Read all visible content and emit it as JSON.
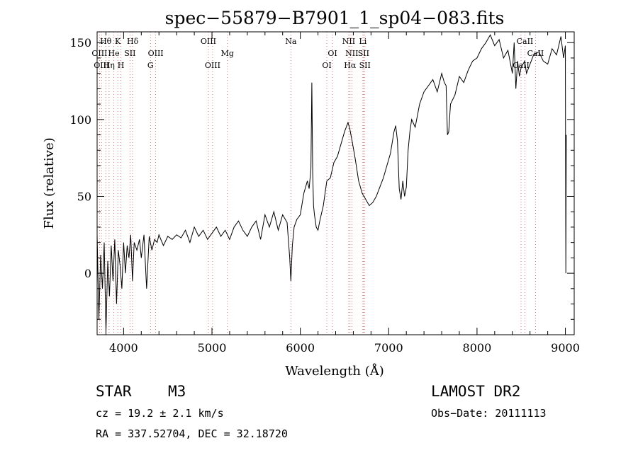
{
  "chart_data": {
    "type": "line",
    "title": "spec−55879−B7901_1_sp04−083.fits",
    "xlabel": "Wavelength (Å)",
    "ylabel": "Flux (relative)",
    "xlim": [
      3700,
      9100
    ],
    "ylim": [
      -40,
      157
    ],
    "x_ticks": [
      4000,
      5000,
      6000,
      7000,
      8000,
      9000
    ],
    "y_ticks": [
      0,
      50,
      100,
      150
    ],
    "series": [
      {
        "x": [
          3700,
          3720,
          3740,
          3760,
          3780,
          3800,
          3820,
          3840,
          3860,
          3880,
          3900,
          3920,
          3940,
          3960,
          3980,
          4000,
          4020,
          4040,
          4060,
          4080,
          4100,
          4120,
          4150,
          4180,
          4200,
          4230,
          4260,
          4290,
          4320,
          4350,
          4380,
          4400,
          4450,
          4500,
          4550,
          4600,
          4650,
          4700,
          4750,
          4800,
          4850,
          4900,
          4950,
          5000,
          5050,
          5100,
          5150,
          5200,
          5250,
          5300,
          5350,
          5400,
          5450,
          5500,
          5550,
          5600,
          5650,
          5700,
          5750,
          5800,
          5850,
          5880,
          5893,
          5910,
          5930,
          5960,
          6000,
          6040,
          6080,
          6100,
          6120,
          6130,
          6140,
          6150,
          6160,
          6180,
          6200,
          6220,
          6260,
          6300,
          6340,
          6380,
          6420,
          6460,
          6500,
          6540,
          6560,
          6580,
          6620,
          6660,
          6700,
          6740,
          6780,
          6820,
          6860,
          6900,
          6940,
          6980,
          7020,
          7060,
          7080,
          7100,
          7120,
          7140,
          7160,
          7180,
          7200,
          7220,
          7240,
          7260,
          7300,
          7350,
          7400,
          7450,
          7500,
          7550,
          7600,
          7630,
          7650,
          7665,
          7680,
          7700,
          7750,
          7800,
          7850,
          7900,
          7950,
          8000,
          8050,
          8100,
          8150,
          8200,
          8250,
          8300,
          8350,
          8400,
          8420,
          8440,
          8460,
          8480,
          8500,
          8540,
          8560,
          8600,
          8640,
          8700,
          8750,
          8800,
          8850,
          8900,
          8950,
          8980,
          9000,
          9005,
          9010
        ],
        "y": [
          25,
          -30,
          12,
          -10,
          20,
          -38,
          8,
          -15,
          18,
          -5,
          22,
          -20,
          15,
          5,
          -10,
          20,
          0,
          18,
          10,
          25,
          -5,
          20,
          15,
          22,
          10,
          25,
          -10,
          24,
          15,
          22,
          20,
          25,
          18,
          24,
          22,
          25,
          23,
          28,
          20,
          30,
          24,
          28,
          22,
          26,
          30,
          24,
          28,
          22,
          30,
          34,
          28,
          24,
          30,
          34,
          22,
          38,
          30,
          40,
          28,
          38,
          33,
          10,
          -5,
          18,
          30,
          35,
          38,
          52,
          60,
          55,
          68,
          124,
          65,
          44,
          38,
          30,
          28,
          34,
          44,
          60,
          62,
          72,
          76,
          84,
          92,
          98,
          94,
          88,
          75,
          60,
          52,
          48,
          44,
          46,
          50,
          56,
          62,
          70,
          78,
          92,
          96,
          86,
          55,
          48,
          60,
          50,
          56,
          80,
          92,
          100,
          95,
          110,
          118,
          122,
          126,
          118,
          130,
          124,
          122,
          90,
          92,
          110,
          116,
          128,
          124,
          132,
          138,
          140,
          146,
          150,
          155,
          148,
          152,
          140,
          145,
          130,
          150,
          120,
          138,
          128,
          134,
          138,
          130,
          136,
          142,
          144,
          138,
          136,
          146,
          142,
          154,
          140,
          148,
          0,
          90
        ]
      }
    ],
    "line_annotations": [
      {
        "label": "Hθ",
        "x": 3798,
        "row": 1
      },
      {
        "label": "K",
        "x": 3934,
        "row": 1
      },
      {
        "label": "Hδ",
        "x": 4102,
        "row": 1
      },
      {
        "label": "OIII",
        "x": 3727,
        "row": 2
      },
      {
        "label": "He",
        "x": 3889,
        "row": 2
      },
      {
        "label": "SII",
        "x": 4072,
        "row": 2
      },
      {
        "label": "OIII",
        "x": 4363,
        "row": 2
      },
      {
        "label": "OIII",
        "x": 3750,
        "row": 3
      },
      {
        "label": "Hη",
        "x": 3835,
        "row": 3
      },
      {
        "label": "H",
        "x": 3969,
        "row": 3
      },
      {
        "label": "G",
        "x": 4304,
        "row": 3
      },
      {
        "label": "OIII",
        "x": 4959,
        "row": 1
      },
      {
        "label": "Mg",
        "x": 5175,
        "row": 2
      },
      {
        "label": "OIII",
        "x": 5007,
        "row": 3
      },
      {
        "label": "Na",
        "x": 5893,
        "row": 1
      },
      {
        "label": "NII",
        "x": 6548,
        "row": 1
      },
      {
        "label": "Li",
        "x": 6708,
        "row": 1
      },
      {
        "label": "OI",
        "x": 6364,
        "row": 2
      },
      {
        "label": "NII",
        "x": 6583,
        "row": 2
      },
      {
        "label": "SII",
        "x": 6716,
        "row": 2
      },
      {
        "label": "OI",
        "x": 6300,
        "row": 3
      },
      {
        "label": "Hα",
        "x": 6563,
        "row": 3
      },
      {
        "label": "SII",
        "x": 6731,
        "row": 3
      },
      {
        "label": "CaII",
        "x": 8542,
        "row": 1
      },
      {
        "label": "CaII",
        "x": 8662,
        "row": 2
      },
      {
        "label": "CaII",
        "x": 8498,
        "row": 3
      }
    ]
  },
  "info": {
    "object_class": "STAR",
    "subclass": "M3",
    "survey": "LAMOST DR2",
    "velocity": "cz = 19.2 ± 2.1 km/s",
    "obs_date": "Obs−Date: 20111113",
    "coords": "RA = 337.52704, DEC =  32.18720"
  },
  "colors": {
    "line": "#000000",
    "marker": "#d05050",
    "axis": "#000000"
  }
}
